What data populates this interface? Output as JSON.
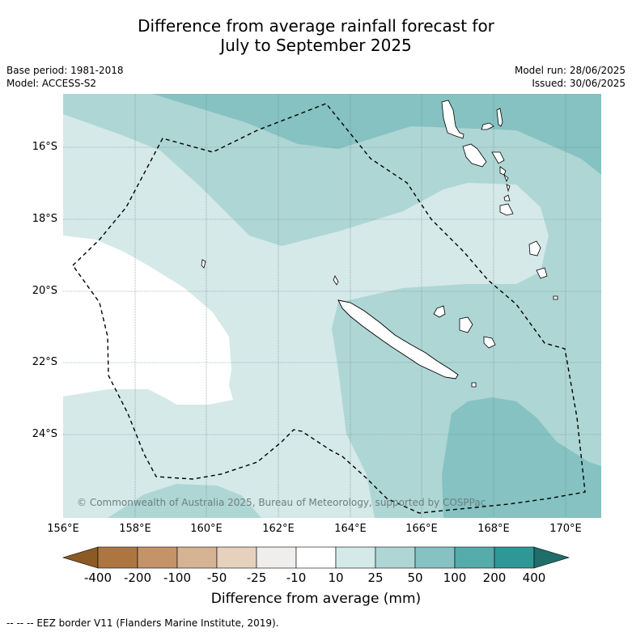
{
  "title_line1": "Difference from average rainfall forecast for",
  "title_line2": "July to September 2025",
  "base_period": "Base period: 1981-2018",
  "model": "Model: ACCESS-S2",
  "model_run": "Model run: 28/06/2025",
  "issued": "Issued: 30/06/2025",
  "lat_labels": [
    "16°S",
    "18°S",
    "20°S",
    "22°S",
    "24°S"
  ],
  "lon_labels": [
    "156°E",
    "158°E",
    "160°E",
    "162°E",
    "164°E",
    "166°E",
    "168°E",
    "170°E"
  ],
  "copyright": "© Commonwealth of Australia 2025, Bureau of Meteorology, supported by COSPPac",
  "colorbar": {
    "labels": [
      "-400",
      "-200",
      "-100",
      "-50",
      "-25",
      "-10",
      "10",
      "25",
      "50",
      "100",
      "200",
      "400"
    ],
    "colors": [
      "#8c5a24",
      "#ad7640",
      "#c49367",
      "#d5b393",
      "#e6d1bd",
      "#efeeec",
      "#ffffff",
      "#d4e9e8",
      "#aed6d5",
      "#85c2c1",
      "#56abab",
      "#2f9896",
      "#1f6e6a"
    ],
    "title": "Difference from average (mm)"
  },
  "footnote": "--  --  -- EEZ border V11 (Flanders Marine Institute, 2019)."
}
